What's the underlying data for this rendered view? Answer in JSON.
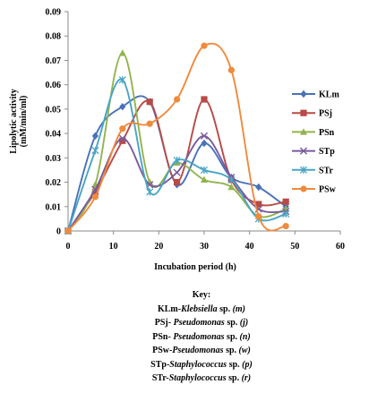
{
  "chart_data": {
    "type": "line",
    "xlabel": "Incubation period (h)",
    "ylabel_lines": [
      "Lipolytic activity",
      "(mM/min/ml)"
    ],
    "xlim": [
      0,
      60
    ],
    "ylim": [
      0,
      0.09
    ],
    "x_ticks": [
      "0",
      "10",
      "20",
      "30",
      "40",
      "50",
      "60"
    ],
    "y_ticks": [
      "0",
      "0.01",
      "0.02",
      "0.03",
      "0.04",
      "0.05",
      "0.06",
      "0.07",
      "0.08",
      "0.09"
    ],
    "x": [
      0,
      6,
      12,
      18,
      24,
      30,
      36,
      42,
      48
    ],
    "grid": false,
    "legend_position": "right",
    "series": [
      {
        "name": "KLm",
        "color": "#4a72b8",
        "marker": "diamond",
        "values": [
          0,
          0.039,
          0.051,
          0.053,
          0.019,
          0.036,
          0.022,
          0.018,
          0.01
        ]
      },
      {
        "name": "PSj",
        "color": "#b84a47",
        "marker": "square",
        "values": [
          0,
          0.016,
          0.037,
          0.053,
          0.02,
          0.054,
          0.021,
          0.011,
          0.012
        ]
      },
      {
        "name": "PSn",
        "color": "#92b44d",
        "marker": "triangle",
        "values": [
          0,
          0.019,
          0.073,
          0.02,
          0.028,
          0.021,
          0.018,
          0.006,
          0.009
        ]
      },
      {
        "name": "STp",
        "color": "#7a5a9e",
        "marker": "x",
        "values": [
          0,
          0.017,
          0.038,
          0.019,
          0.024,
          0.039,
          0.022,
          0.009,
          0.008
        ]
      },
      {
        "name": "STr",
        "color": "#4aa5c4",
        "marker": "star",
        "values": [
          0,
          0.033,
          0.062,
          0.016,
          0.029,
          0.025,
          0.021,
          0.005,
          0.007
        ]
      },
      {
        "name": "PSw",
        "color": "#f08a3c",
        "marker": "circle",
        "values": [
          0,
          0.014,
          0.042,
          0.044,
          0.054,
          0.076,
          0.066,
          0.006,
          0.002
        ]
      }
    ]
  },
  "key": {
    "title": "Key:",
    "entries": [
      {
        "code": "KLm-",
        "genus": "Klebsiella",
        "rest": " sp. ",
        "strain": "(m)"
      },
      {
        "code": "PSj- ",
        "genus": "Pseudomonas",
        "rest": " sp. ",
        "strain": "(j)"
      },
      {
        "code": "PSn- ",
        "genus": "Pseudomonas",
        "rest": " sp. ",
        "strain": "(n)"
      },
      {
        "code": "PSw-",
        "genus": "Pseudomonas",
        "rest": " sp. ",
        "strain": "(w)"
      },
      {
        "code": "STp-",
        "genus": "Staphylococcus",
        "rest": " sp. ",
        "strain": "(p)"
      },
      {
        "code": "STr-",
        "genus": "Staphylococcus",
        "rest": " sp. ",
        "strain": "(r)"
      }
    ]
  }
}
